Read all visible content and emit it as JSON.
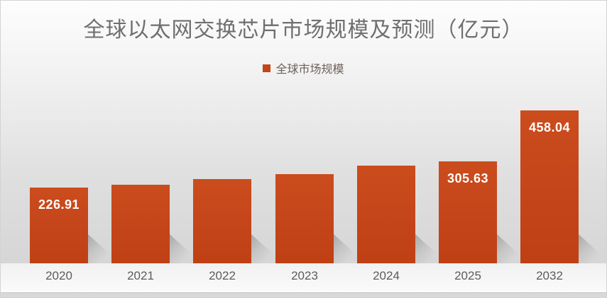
{
  "chart_data": {
    "type": "bar",
    "title": "全球以太网交换芯片市场规模及预测（亿元）",
    "legend": {
      "label": "全球市场规模",
      "position": "top",
      "swatch_color": "#C2451C"
    },
    "categories": [
      "2020",
      "2021",
      "2022",
      "2023",
      "2024",
      "2025",
      "2032"
    ],
    "series": [
      {
        "name": "全球市场规模",
        "values": [
          226.91,
          235,
          252,
          268,
          292,
          305.63,
          458.04
        ],
        "value_labels_shown": [
          "226.91",
          "",
          "",
          "",
          "",
          "305.63",
          "458.04"
        ]
      }
    ],
    "unit": "亿元",
    "ylim": [
      0,
      480
    ],
    "grid": false,
    "xlabel": "",
    "ylabel": "",
    "bar_color": "#C4451A",
    "x_label_color": "#5C5C5C"
  }
}
